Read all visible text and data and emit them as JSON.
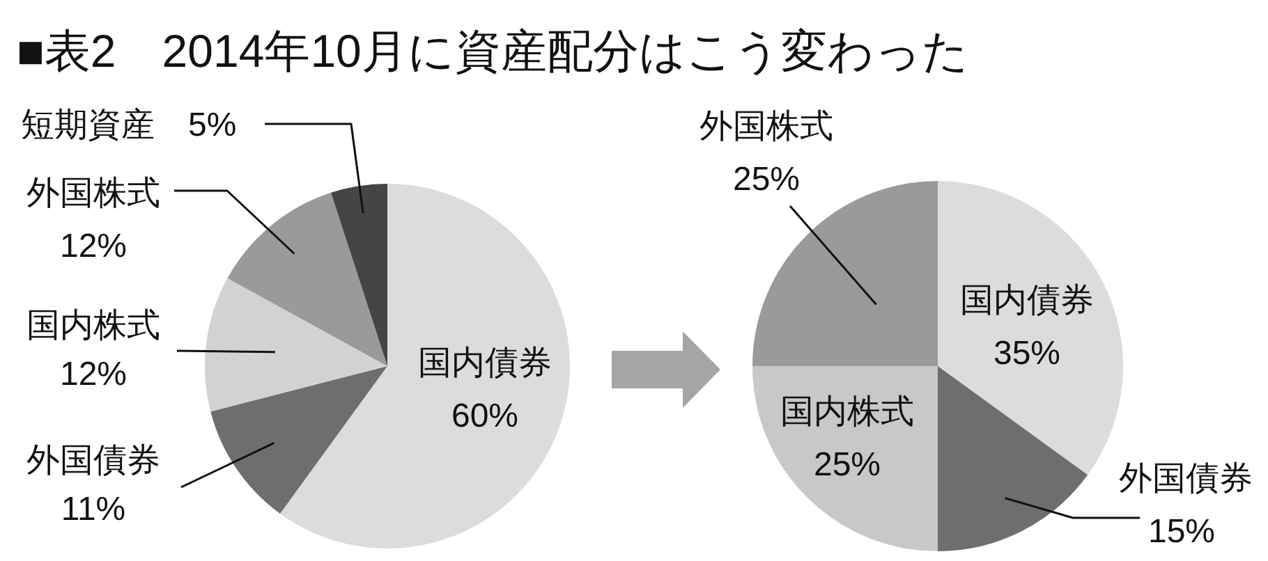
{
  "chart_data": [
    {
      "type": "pie",
      "title": "■表2　2014年10月に資産配分はこう変わった",
      "categories": [
        "国内債券",
        "外国債券",
        "国内株式",
        "外国株式",
        "短期資産"
      ],
      "values": [
        60,
        11,
        12,
        12,
        5
      ],
      "colors": [
        "#dcdcdc",
        "#6e6e70",
        "#d2d2d2",
        "#9a9a9b",
        "#454545"
      ],
      "value_labels": [
        "60%",
        "11%",
        "12%",
        "12%",
        "5%"
      ]
    },
    {
      "type": "pie",
      "categories": [
        "国内債券",
        "外国債券",
        "国内株式",
        "外国株式"
      ],
      "values": [
        35,
        15,
        25,
        25
      ],
      "colors": [
        "#dcdcdc",
        "#6e6e70",
        "#c8c8c8",
        "#9a9a9b"
      ],
      "value_labels": [
        "35%",
        "15%",
        "25%",
        "25%"
      ]
    }
  ]
}
